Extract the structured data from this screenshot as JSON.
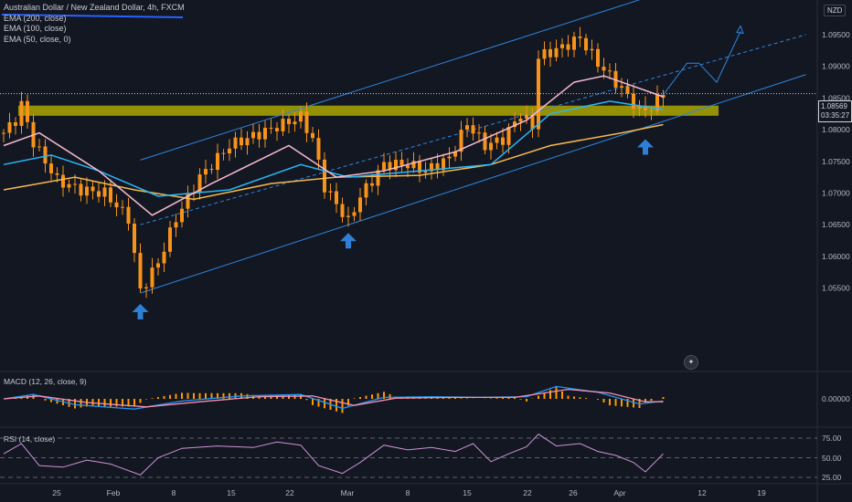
{
  "chart_title": "Australian Dollar / New Zealand Dollar, 4h, FXCM",
  "indicators": [
    "EMA (200, close)",
    "EMA (100, close)",
    "EMA (50, close, 0)"
  ],
  "currency": "NZD",
  "last_price": "1.08569",
  "countdown": "03:35:27",
  "macd_label": "MACD (12, 26, close, 9)",
  "macd_zero_label": "0.00000",
  "rsi_label": "RSI (14, close)",
  "rsi_ticks": [
    "75.00",
    "50.00",
    "25.00"
  ],
  "colors": {
    "background": "#131722",
    "candle": "#f7931a",
    "ema200": "#f5b94d",
    "ema100": "#29b6f6",
    "ema50": "#f8bbd0",
    "support_zone": "#b5b000",
    "channel": "#2e86de",
    "arrow": "#2f7fd6",
    "macd_line": "#2196f3",
    "signal_line": "#f48fb1",
    "histogram": "#ff9800",
    "rsi": "#ce93d8"
  },
  "chart_data": {
    "type": "candlestick",
    "title": "Australian Dollar / New Zealand Dollar, 4h, FXCM",
    "y_ticks": [
      1.095,
      1.09,
      1.085,
      1.08,
      1.075,
      1.07,
      1.065,
      1.06,
      1.055
    ],
    "y_tick_labels": [
      "1.09500",
      "1.09000",
      "1.08500",
      "1.08000",
      "1.07500",
      "1.07000",
      "1.06500",
      "1.06000",
      "1.05500"
    ],
    "ylim": [
      1.0518,
      1.0985
    ],
    "x_tick_labels": [
      "25",
      "Feb",
      "8",
      "15",
      "22",
      "Mar",
      "8",
      "15",
      "22",
      "26",
      "Apr",
      "12",
      "19"
    ],
    "close_path": [
      {
        "t": 0,
        "v": 1.0795
      },
      {
        "t": 2,
        "v": 1.0815
      },
      {
        "t": 3,
        "v": 1.084
      },
      {
        "t": 5,
        "v": 1.078
      },
      {
        "t": 9,
        "v": 1.072
      },
      {
        "t": 13,
        "v": 1.0705
      },
      {
        "t": 17,
        "v": 1.07
      },
      {
        "t": 21,
        "v": 1.066
      },
      {
        "t": 23,
        "v": 1.0545
      },
      {
        "t": 26,
        "v": 1.059
      },
      {
        "t": 29,
        "v": 1.066
      },
      {
        "t": 33,
        "v": 1.0725
      },
      {
        "t": 38,
        "v": 1.0775
      },
      {
        "t": 42,
        "v": 1.079
      },
      {
        "t": 46,
        "v": 1.0805
      },
      {
        "t": 50,
        "v": 1.082
      },
      {
        "t": 52,
        "v": 1.0785
      },
      {
        "t": 54,
        "v": 1.071
      },
      {
        "t": 58,
        "v": 1.0655
      },
      {
        "t": 60,
        "v": 1.0695
      },
      {
        "t": 64,
        "v": 1.0745
      },
      {
        "t": 68,
        "v": 1.0745
      },
      {
        "t": 71,
        "v": 1.0735
      },
      {
        "t": 75,
        "v": 1.0755
      },
      {
        "t": 78,
        "v": 1.081
      },
      {
        "t": 81,
        "v": 1.0775
      },
      {
        "t": 84,
        "v": 1.0785
      },
      {
        "t": 87,
        "v": 1.0825
      },
      {
        "t": 89,
        "v": 1.0805
      },
      {
        "t": 90,
        "v": 1.0915
      },
      {
        "t": 94,
        "v": 1.093
      },
      {
        "t": 97,
        "v": 1.0945
      },
      {
        "t": 100,
        "v": 1.0905
      },
      {
        "t": 104,
        "v": 1.0865
      },
      {
        "t": 107,
        "v": 1.083
      },
      {
        "t": 109,
        "v": 1.0835
      },
      {
        "t": 111,
        "v": 1.0857
      }
    ],
    "ema200_path": [
      {
        "t": 0,
        "v": 1.0705
      },
      {
        "t": 12,
        "v": 1.0725
      },
      {
        "t": 22,
        "v": 1.0705
      },
      {
        "t": 32,
        "v": 1.069
      },
      {
        "t": 45,
        "v": 1.0715
      },
      {
        "t": 56,
        "v": 1.0725
      },
      {
        "t": 70,
        "v": 1.0728
      },
      {
        "t": 82,
        "v": 1.0745
      },
      {
        "t": 92,
        "v": 1.0775
      },
      {
        "t": 104,
        "v": 1.0795
      },
      {
        "t": 111,
        "v": 1.0808
      }
    ],
    "ema100_path": [
      {
        "t": 0,
        "v": 1.0745
      },
      {
        "t": 8,
        "v": 1.076
      },
      {
        "t": 16,
        "v": 1.0735
      },
      {
        "t": 26,
        "v": 1.0695
      },
      {
        "t": 38,
        "v": 1.0705
      },
      {
        "t": 50,
        "v": 1.0745
      },
      {
        "t": 58,
        "v": 1.0725
      },
      {
        "t": 70,
        "v": 1.0735
      },
      {
        "t": 82,
        "v": 1.0745
      },
      {
        "t": 92,
        "v": 1.0825
      },
      {
        "t": 102,
        "v": 1.0845
      },
      {
        "t": 111,
        "v": 1.0832
      }
    ],
    "ema50_path": [
      {
        "t": 0,
        "v": 1.0775
      },
      {
        "t": 6,
        "v": 1.0795
      },
      {
        "t": 16,
        "v": 1.0735
      },
      {
        "t": 25,
        "v": 1.0665
      },
      {
        "t": 35,
        "v": 1.0715
      },
      {
        "t": 48,
        "v": 1.0775
      },
      {
        "t": 56,
        "v": 1.0725
      },
      {
        "t": 64,
        "v": 1.0735
      },
      {
        "t": 76,
        "v": 1.0765
      },
      {
        "t": 88,
        "v": 1.0815
      },
      {
        "t": 96,
        "v": 1.0875
      },
      {
        "t": 101,
        "v": 1.0885
      },
      {
        "t": 111,
        "v": 1.0852
      }
    ],
    "support_zone": [
      1.0822,
      1.0838
    ],
    "channel_lower": [
      {
        "t": 23,
        "v": 1.0542
      },
      {
        "t": 135,
        "v": 1.0887
      }
    ],
    "channel_upper": [
      {
        "t": 23,
        "v": 1.0752
      },
      {
        "t": 107,
        "v": 1.1005
      }
    ],
    "channel_middle": [
      {
        "t": 23,
        "v": 1.065
      },
      {
        "t": 135,
        "v": 1.095
      }
    ],
    "projection": [
      {
        "t": 111,
        "v": 1.0855
      },
      {
        "t": 115,
        "v": 1.0905
      },
      {
        "t": 117,
        "v": 1.0905
      },
      {
        "t": 120,
        "v": 1.0875
      },
      {
        "t": 124,
        "v": 1.0955
      }
    ],
    "reversal_arrows": [
      {
        "t": 23,
        "v": 1.0525
      },
      {
        "t": 58,
        "v": 1.0637
      },
      {
        "t": 108,
        "v": 1.0785
      }
    ],
    "macd_path": [
      {
        "t": 0,
        "v": 0.0
      },
      {
        "t": 5,
        "v": 0.0006
      },
      {
        "t": 12,
        "v": -0.0008
      },
      {
        "t": 22,
        "v": -0.0014
      },
      {
        "t": 30,
        "v": -0.0003
      },
      {
        "t": 40,
        "v": 0.0004
      },
      {
        "t": 50,
        "v": 0.0006
      },
      {
        "t": 57,
        "v": -0.0013
      },
      {
        "t": 64,
        "v": 0.0002
      },
      {
        "t": 72,
        "v": 0.0003
      },
      {
        "t": 80,
        "v": 0.0002
      },
      {
        "t": 88,
        "v": 0.0003
      },
      {
        "t": 93,
        "v": 0.0017
      },
      {
        "t": 100,
        "v": 0.0009
      },
      {
        "t": 107,
        "v": -0.0007
      },
      {
        "t": 111,
        "v": -0.0003
      }
    ],
    "signal_path": [
      {
        "t": 0,
        "v": 0.0
      },
      {
        "t": 6,
        "v": 0.0004
      },
      {
        "t": 14,
        "v": -0.0005
      },
      {
        "t": 24,
        "v": -0.0011
      },
      {
        "t": 33,
        "v": -0.0004
      },
      {
        "t": 43,
        "v": 0.0003
      },
      {
        "t": 52,
        "v": 0.0004
      },
      {
        "t": 59,
        "v": -0.0009
      },
      {
        "t": 66,
        "v": 0.0001
      },
      {
        "t": 76,
        "v": 0.0002
      },
      {
        "t": 86,
        "v": 0.0002
      },
      {
        "t": 95,
        "v": 0.0013
      },
      {
        "t": 102,
        "v": 0.0008
      },
      {
        "t": 108,
        "v": -0.0004
      },
      {
        "t": 111,
        "v": -0.0004
      }
    ],
    "rsi_path": [
      {
        "t": 0,
        "v": 55
      },
      {
        "t": 3,
        "v": 68
      },
      {
        "t": 6,
        "v": 40
      },
      {
        "t": 10,
        "v": 38
      },
      {
        "t": 14,
        "v": 47
      },
      {
        "t": 18,
        "v": 42
      },
      {
        "t": 23,
        "v": 28
      },
      {
        "t": 26,
        "v": 50
      },
      {
        "t": 30,
        "v": 62
      },
      {
        "t": 36,
        "v": 65
      },
      {
        "t": 42,
        "v": 63
      },
      {
        "t": 46,
        "v": 70
      },
      {
        "t": 50,
        "v": 66
      },
      {
        "t": 53,
        "v": 40
      },
      {
        "t": 57,
        "v": 30
      },
      {
        "t": 60,
        "v": 44
      },
      {
        "t": 64,
        "v": 66
      },
      {
        "t": 68,
        "v": 60
      },
      {
        "t": 72,
        "v": 63
      },
      {
        "t": 76,
        "v": 58
      },
      {
        "t": 79,
        "v": 68
      },
      {
        "t": 82,
        "v": 45
      },
      {
        "t": 85,
        "v": 55
      },
      {
        "t": 88,
        "v": 64
      },
      {
        "t": 90,
        "v": 80
      },
      {
        "t": 93,
        "v": 65
      },
      {
        "t": 97,
        "v": 68
      },
      {
        "t": 100,
        "v": 58
      },
      {
        "t": 103,
        "v": 53
      },
      {
        "t": 106,
        "v": 44
      },
      {
        "t": 108,
        "v": 32
      },
      {
        "t": 111,
        "v": 55
      }
    ]
  }
}
